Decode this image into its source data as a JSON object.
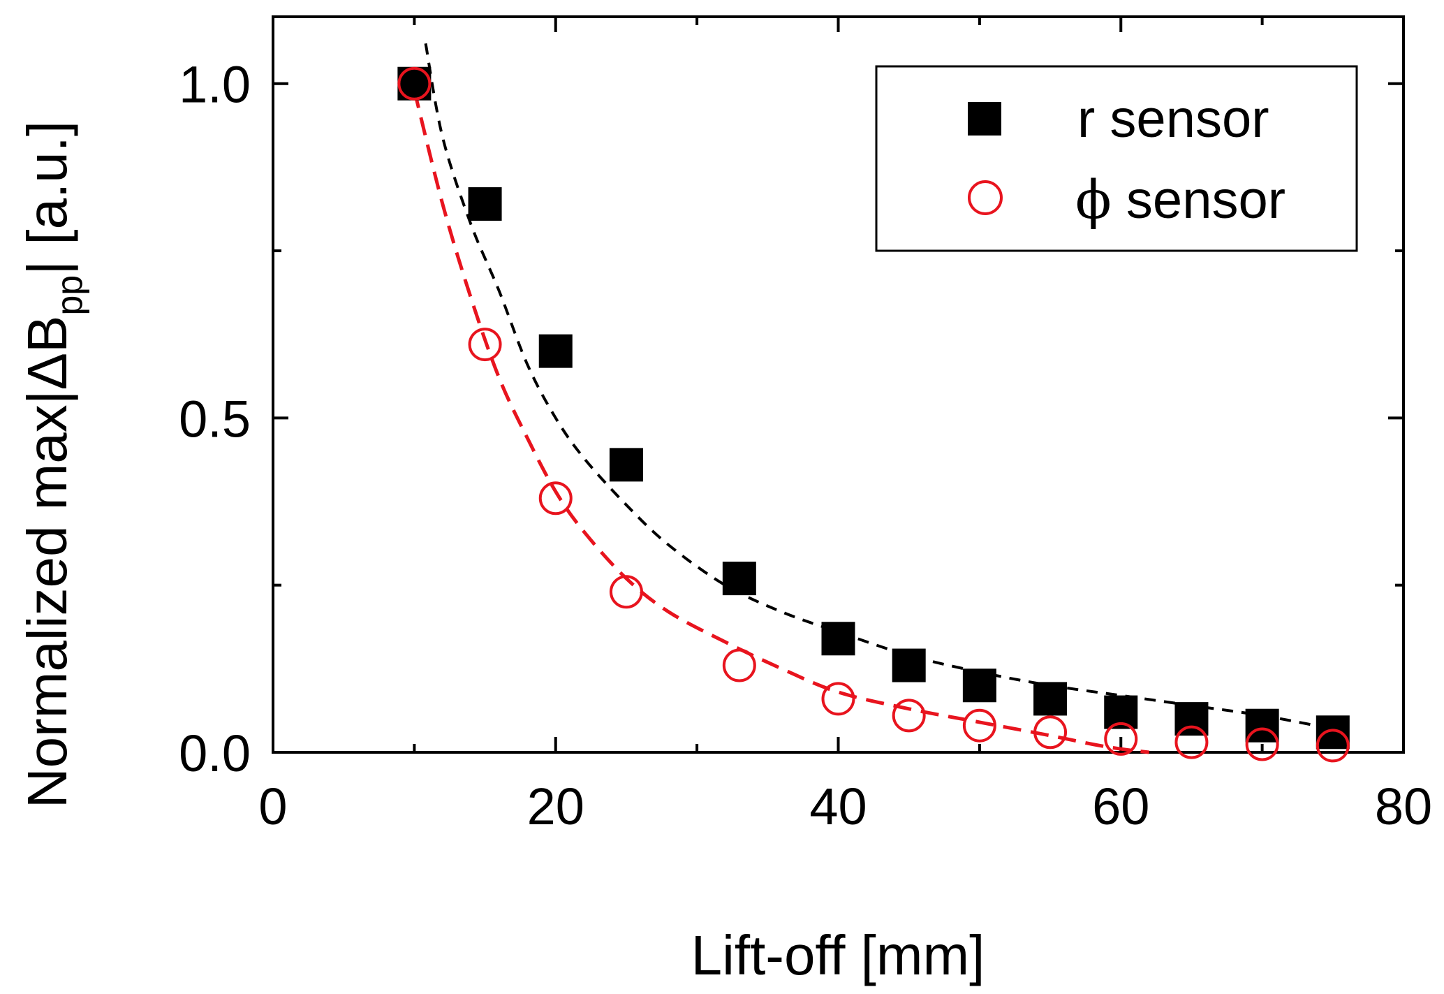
{
  "chart_data": {
    "type": "scatter",
    "title": "",
    "xlabel": "Lift-off [mm]",
    "ylabel": {
      "prefix": "Normalized max|ΔB",
      "subscript": "pp",
      "suffix": "| [a.u.]"
    },
    "xlim": [
      0,
      80
    ],
    "ylim": [
      0.0,
      1.1
    ],
    "x_ticks": [
      0,
      20,
      40,
      60,
      80
    ],
    "x_tick_labels": [
      "0",
      "20",
      "40",
      "60",
      "80"
    ],
    "y_ticks": [
      0.0,
      0.5,
      1.0
    ],
    "y_tick_labels": [
      "0.0",
      "0.5",
      "1.0"
    ],
    "y_minor_ticks": [
      0.25,
      0.75
    ],
    "x_minor_ticks": [
      10,
      30,
      50,
      70
    ],
    "grid": false,
    "legend_position": "top-right",
    "series": [
      {
        "name": "r sensor",
        "legend_symbol": "",
        "legend_label": "r sensor",
        "marker": "filled-square",
        "color": "#000000",
        "x": [
          10,
          15,
          20,
          25,
          33,
          40,
          45,
          50,
          55,
          60,
          65,
          70,
          75
        ],
        "values": [
          1.0,
          0.82,
          0.6,
          0.43,
          0.26,
          0.17,
          0.13,
          0.1,
          0.08,
          0.06,
          0.05,
          0.04,
          0.03
        ]
      },
      {
        "name": "φ sensor",
        "legend_symbol": "ϕ",
        "legend_label": " sensor",
        "marker": "open-circle",
        "color": "#e8141e",
        "x": [
          10,
          15,
          20,
          25,
          33,
          40,
          45,
          50,
          55,
          60,
          65,
          70,
          75
        ],
        "values": [
          1.0,
          0.61,
          0.38,
          0.24,
          0.13,
          0.08,
          0.055,
          0.04,
          0.03,
          0.02,
          0.015,
          0.012,
          0.01
        ]
      }
    ],
    "fits": [
      {
        "name": "r sensor fit",
        "style": "short-dashed",
        "color": "#000000",
        "x": [
          10.8,
          12,
          14,
          16,
          18,
          20,
          22,
          25,
          28,
          32,
          36,
          40,
          45,
          50,
          55,
          60,
          65,
          70,
          75
        ],
        "values": [
          1.06,
          0.92,
          0.79,
          0.69,
          0.58,
          0.5,
          0.44,
          0.37,
          0.31,
          0.25,
          0.21,
          0.18,
          0.145,
          0.12,
          0.1,
          0.085,
          0.07,
          0.055,
          0.035
        ]
      },
      {
        "name": "φ sensor fit",
        "style": "long-dashed",
        "color": "#e8141e",
        "x": [
          10,
          12,
          14,
          16,
          18,
          20,
          22,
          25,
          28,
          32,
          36,
          40,
          45,
          50,
          55,
          58,
          60,
          62
        ],
        "values": [
          0.99,
          0.82,
          0.68,
          0.56,
          0.47,
          0.39,
          0.33,
          0.26,
          0.21,
          0.165,
          0.125,
          0.09,
          0.065,
          0.045,
          0.025,
          0.012,
          0.005,
          0.0
        ]
      }
    ]
  }
}
